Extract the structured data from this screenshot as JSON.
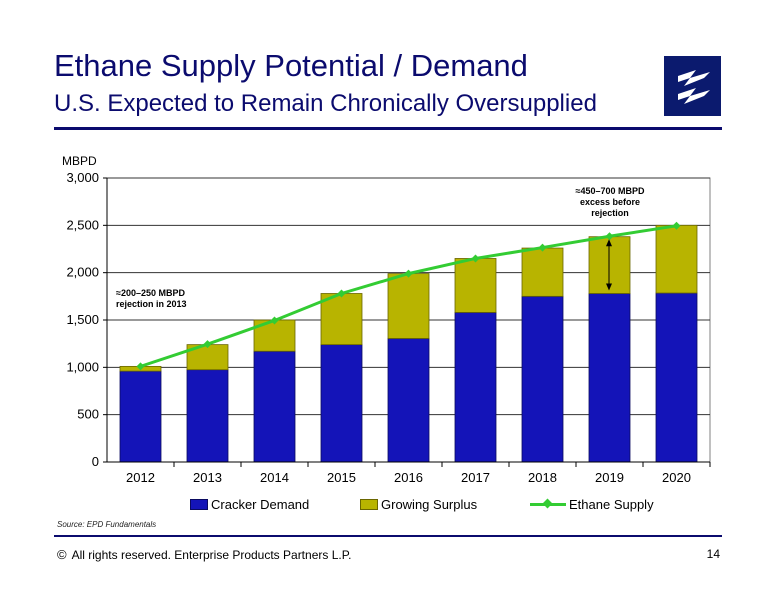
{
  "page": {
    "title": "Ethane Supply Potential / Demand",
    "subtitle": "U.S. Expected to Remain Chronically Oversupplied",
    "source": "Source:  EPD Fundamentals",
    "footer_symbol": "©",
    "footer": "All rights reserved. Enterprise Products Partners L.P.",
    "page_number": "14"
  },
  "colors": {
    "cracker_demand": "#1414b8",
    "growing_surplus": "#b8b400",
    "ethane_supply": "#33cc33",
    "title": "#0b0b6e"
  },
  "chart_data": {
    "type": "bar",
    "stacked": true,
    "ylabel": "MBPD",
    "ylim": [
      0,
      3000
    ],
    "y_ticks": [
      "0",
      "500",
      "1,000",
      "1,500",
      "2,000",
      "2,500",
      "3,000"
    ],
    "y_tick_values": [
      0,
      500,
      1000,
      1500,
      2000,
      2500,
      3000
    ],
    "categories": [
      "2012",
      "2013",
      "2014",
      "2015",
      "2016",
      "2017",
      "2018",
      "2019",
      "2020"
    ],
    "series": [
      {
        "name": "Cracker Demand",
        "kind": "bar",
        "values": [
          960,
          975,
          1170,
          1240,
          1305,
          1580,
          1750,
          1780,
          1785
        ]
      },
      {
        "name": "Growing Surplus",
        "kind": "bar",
        "values": [
          50,
          265,
          330,
          540,
          685,
          570,
          510,
          600,
          715
        ]
      },
      {
        "name": "Ethane Supply",
        "kind": "line",
        "values": [
          1010,
          1245,
          1495,
          1780,
          1990,
          2150,
          2265,
          2385,
          2495
        ]
      }
    ],
    "annotations": {
      "left": "≈200–250 MBPD\nrejection in 2013",
      "right": "≈450–700 MBPD\nexcess before\nrejection"
    },
    "grid": true,
    "legend_position": "bottom"
  }
}
